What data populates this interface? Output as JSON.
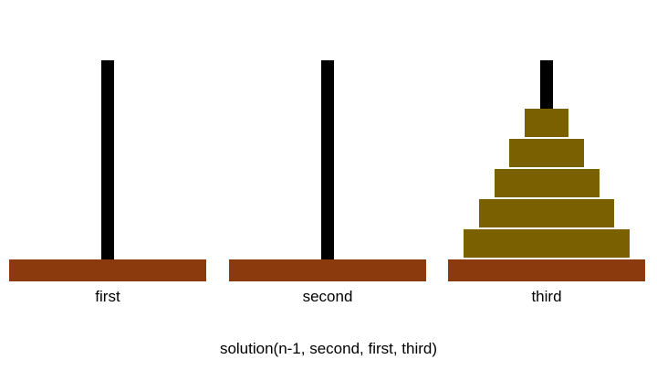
{
  "towers": [
    {
      "label": "first",
      "disks": []
    },
    {
      "label": "second",
      "disks": []
    },
    {
      "label": "third",
      "disks": [
        5,
        4,
        3,
        2,
        1
      ]
    }
  ],
  "caption": "solution(n-1, second, first, third)",
  "colors": {
    "peg": "#000000",
    "base": "#8B3A0E",
    "disk": "#7B6000",
    "text": "#000000",
    "background": "#ffffff"
  }
}
